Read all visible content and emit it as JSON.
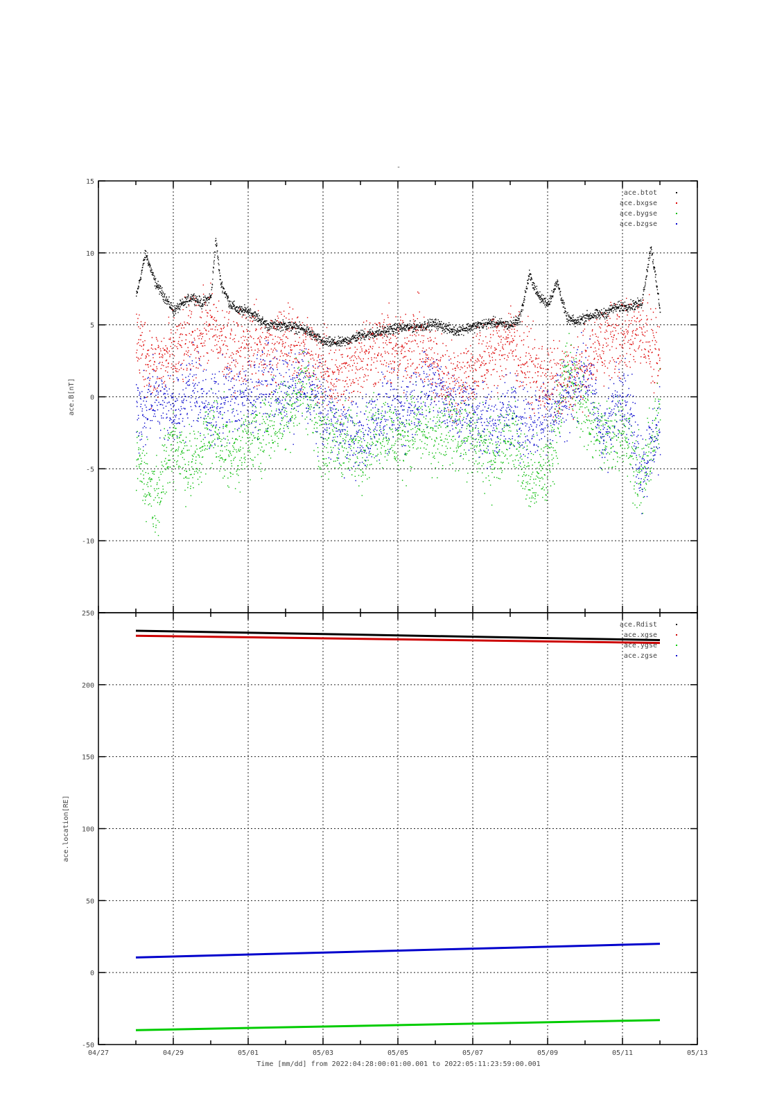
{
  "page": {
    "subtitle": "-"
  },
  "x_axis": {
    "ticks": [
      "04/27",
      "04/29",
      "05/01",
      "05/03",
      "05/05",
      "05/07",
      "05/09",
      "05/11",
      "05/13"
    ],
    "label": "Time [mm/dd]  from 2022:04:28:00:01:00.001  to  2022:05:11:23:59:00.001"
  },
  "chart_data": [
    {
      "type": "scatter",
      "ylabel": "ace.B[nT]",
      "ylim": [
        -15,
        15
      ],
      "yticks": [
        15,
        10,
        5,
        0,
        -5,
        -10,
        -15
      ],
      "xlim": [
        "04/27",
        "05/13"
      ],
      "grid": true,
      "legend_position": "top-right",
      "series": [
        {
          "name": "ace.btot",
          "color": "#000000",
          "x": [
            "04/28",
            "04/28 06:00",
            "04/28 12:00",
            "04/28 18:00",
            "04/29",
            "04/29 06:00",
            "04/29 12:00",
            "04/29 18:00",
            "04/30",
            "04/30 03:00",
            "04/30 06:00",
            "04/30 12:00",
            "04/30 18:00",
            "05/01",
            "05/01 12:00",
            "05/02",
            "05/02 12:00",
            "05/03",
            "05/03 12:00",
            "05/04",
            "05/04 12:00",
            "05/05",
            "05/05 12:00",
            "05/06",
            "05/06 12:00",
            "05/07",
            "05/07 12:00",
            "05/08",
            "05/08 06:00",
            "05/08 12:00",
            "05/08 18:00",
            "05/09",
            "05/09 06:00",
            "05/09 12:00",
            "05/09 18:00",
            "05/10",
            "05/10 12:00",
            "05/10 18:00",
            "05/11",
            "05/11 12:00",
            "05/11 18:00",
            "05/12"
          ],
          "values": [
            7,
            10,
            8,
            7,
            6,
            6.5,
            7,
            6.5,
            7,
            11,
            8,
            6.5,
            6,
            6,
            5,
            5,
            4.7,
            3.8,
            3.8,
            4.3,
            4.5,
            4.8,
            4.9,
            5.1,
            4.6,
            4.9,
            5.2,
            5,
            5.5,
            8.5,
            7,
            6.5,
            8,
            5.5,
            5.2,
            5.6,
            5.8,
            6.2,
            6.3,
            6.5,
            10.5,
            6
          ]
        },
        {
          "name": "ace.bxgse",
          "color": "#dd0000",
          "x": [
            "04/28",
            "04/28 12:00",
            "04/29",
            "04/29 12:00",
            "04/30",
            "04/30 12:00",
            "05/01",
            "05/01 12:00",
            "05/02",
            "05/02 12:00",
            "05/03",
            "05/03 12:00",
            "05/04",
            "05/04 12:00",
            "05/05",
            "05/05 12:00",
            "05/06",
            "05/06 12:00",
            "05/07",
            "05/07 12:00",
            "05/08",
            "05/08 12:00",
            "05/09",
            "05/09 12:00",
            "05/10",
            "05/10 12:00",
            "05/11",
            "05/11 12:00",
            "05/12"
          ],
          "values": [
            4,
            2,
            3,
            4,
            5,
            3,
            4,
            3,
            4,
            3,
            2,
            1,
            3,
            3.5,
            3,
            4,
            2,
            1,
            2,
            3,
            4,
            2,
            1,
            1,
            2,
            4,
            4,
            5,
            2
          ]
        },
        {
          "name": "ace.bygse",
          "color": "#00bb00",
          "x": [
            "04/28",
            "04/28 12:00",
            "04/29",
            "04/29 12:00",
            "04/30",
            "04/30 12:00",
            "05/01",
            "05/01 12:00",
            "05/02",
            "05/02 12:00",
            "05/03",
            "05/03 12:00",
            "05/04",
            "05/04 12:00",
            "05/05",
            "05/05 12:00",
            "05/06",
            "05/06 12:00",
            "05/07",
            "05/07 12:00",
            "05/08",
            "05/08 12:00",
            "05/09",
            "05/09 12:00",
            "05/10",
            "05/10 12:00",
            "05/11",
            "05/11 12:00",
            "05/12"
          ],
          "values": [
            -4,
            -7,
            -3,
            -5,
            -2,
            -4,
            -3,
            -2,
            -1,
            1,
            -3,
            -3,
            -3.5,
            -2,
            -3,
            -2,
            -3,
            -2,
            -3,
            -4,
            -2,
            -6,
            -5,
            2,
            -1,
            -3,
            -2,
            -6,
            -1
          ]
        },
        {
          "name": "ace.bzgse",
          "color": "#0000cc",
          "x": [
            "04/28",
            "04/28 12:00",
            "04/29",
            "04/29 12:00",
            "04/30",
            "04/30 12:00",
            "05/01",
            "05/01 12:00",
            "05/02",
            "05/02 12:00",
            "05/03",
            "05/03 12:00",
            "05/04",
            "05/04 12:00",
            "05/05",
            "05/05 12:00",
            "05/06",
            "05/06 12:00",
            "05/07",
            "05/07 12:00",
            "05/08",
            "05/08 12:00",
            "05/09",
            "05/09 12:00",
            "05/10",
            "05/10 12:00",
            "05/11",
            "05/11 12:00",
            "05/12"
          ],
          "values": [
            -1,
            0,
            -1,
            1,
            -1,
            0,
            0,
            1,
            0,
            1,
            -1,
            -2,
            -3,
            -1,
            -1,
            0,
            1,
            -1,
            -1,
            -2,
            -1,
            -2,
            -1,
            0,
            2,
            -3,
            1,
            -5,
            -2
          ]
        }
      ]
    },
    {
      "type": "line",
      "ylabel": "ace.location[RE]",
      "ylim": [
        -50,
        250
      ],
      "yticks": [
        250,
        200,
        150,
        100,
        50,
        0,
        -50
      ],
      "xlim": [
        "04/27",
        "05/13"
      ],
      "grid": true,
      "legend_position": "top-right",
      "series": [
        {
          "name": "ace.Rdist",
          "color": "#000000",
          "x": [
            "04/28",
            "05/12"
          ],
          "values": [
            237.5,
            231
          ]
        },
        {
          "name": "ace.xgse",
          "color": "#cc0000",
          "x": [
            "04/28",
            "05/12"
          ],
          "values": [
            234,
            229
          ]
        },
        {
          "name": "ace.ygse",
          "color": "#00cc00",
          "x": [
            "04/28",
            "05/12"
          ],
          "values": [
            -40,
            -33
          ]
        },
        {
          "name": "ace.zgse",
          "color": "#0000cc",
          "x": [
            "04/28",
            "05/12"
          ],
          "values": [
            10.5,
            20
          ]
        }
      ]
    }
  ]
}
